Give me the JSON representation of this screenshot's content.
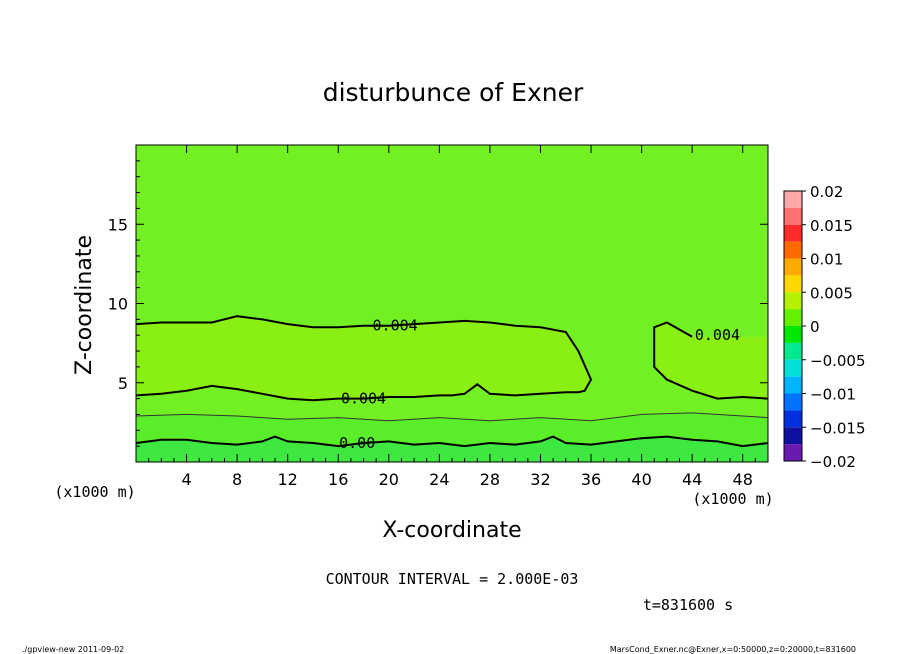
{
  "chart_data": {
    "type": "heatmap",
    "title": "disturbunce of Exner",
    "xlabel": "X-coordinate",
    "ylabel": "Z-coordinate",
    "x_unit_left": "(x1000 m)",
    "x_unit_right": "(x1000 m)",
    "xlim": [
      0,
      50
    ],
    "ylim": [
      0,
      20
    ],
    "x_ticks": [
      4,
      8,
      12,
      16,
      20,
      24,
      28,
      32,
      36,
      40,
      44,
      48
    ],
    "x_tick_labels": [
      "4",
      "8",
      "12",
      "16",
      "20",
      "24",
      "28",
      "32",
      "36",
      "40",
      "44",
      "48"
    ],
    "y_ticks": [
      5,
      10,
      15
    ],
    "y_tick_labels": [
      "5",
      "10",
      "15"
    ],
    "colorbar": {
      "levels": [
        0.02,
        0.0175,
        0.015,
        0.0125,
        0.01,
        0.0075,
        0.005,
        0.0025,
        0,
        -0.0025,
        -0.005,
        -0.0075,
        -0.01,
        -0.0125,
        -0.015,
        -0.0175,
        -0.02
      ],
      "labels": [
        "0.02",
        "0.015",
        "0.01",
        "0.005",
        "0",
        "−0.005",
        "−0.01",
        "−0.015",
        "−0.02"
      ],
      "label_values": [
        0.02,
        0.015,
        0.01,
        0.005,
        0,
        -0.005,
        -0.01,
        -0.015,
        -0.02
      ],
      "colors": [
        "#ffaaaa",
        "#ff7070",
        "#ff2a2a",
        "#ff6a00",
        "#ffaa00",
        "#ffd700",
        "#b4f000",
        "#64f000",
        "#00e800",
        "#00e890",
        "#00e0d8",
        "#00b4ff",
        "#0074ff",
        "#0030e0",
        "#1010a0",
        "#6a1ab0"
      ]
    },
    "fill_colors": {
      "upper": "#72f023",
      "middle": "#8af014",
      "band_low": "#5aee2a",
      "band_bottom": "#3ee840"
    },
    "contours": [
      {
        "level": 0.004,
        "label": "0.004",
        "upper_x": [
          0,
          2,
          6,
          8,
          10,
          12,
          14,
          16,
          18,
          20,
          22,
          24,
          26,
          28,
          30,
          32,
          34,
          35,
          36,
          35.5,
          35,
          34,
          32,
          30,
          28,
          27,
          26,
          25,
          24,
          22,
          20,
          18,
          16,
          14,
          12,
          10,
          8,
          6,
          4,
          2,
          0
        ],
        "upper_y": [
          8.7,
          8.8,
          8.8,
          9.2,
          9.0,
          8.7,
          8.5,
          8.5,
          8.6,
          8.6,
          8.7,
          8.8,
          8.9,
          8.8,
          8.6,
          8.5,
          8.2,
          7.0,
          5.2,
          4.5,
          4.4,
          4.4,
          4.3,
          4.2,
          4.3,
          4.9,
          4.3,
          4.2,
          4.2,
          4.1,
          4.1,
          4.0,
          4.0,
          3.9,
          4.0,
          4.3,
          4.6,
          4.8,
          4.5,
          4.3,
          4.2
        ],
        "right_x": [
          50,
          48,
          46,
          44,
          42,
          41,
          41,
          42,
          44
        ],
        "right_y": [
          4.0,
          4.1,
          4.0,
          4.5,
          5.2,
          6.0,
          8.5,
          8.8,
          7.9
        ]
      },
      {
        "level": 0.002,
        "label": "",
        "x": [
          0,
          4,
          8,
          12,
          16,
          20,
          24,
          28,
          32,
          36,
          40,
          44,
          48,
          50
        ],
        "y": [
          2.9,
          3.0,
          2.9,
          2.7,
          2.8,
          2.6,
          2.8,
          2.6,
          2.8,
          2.6,
          3.0,
          3.1,
          2.9,
          2.8
        ]
      },
      {
        "level": 0.0,
        "label": "0.00",
        "x": [
          0,
          2,
          4,
          6,
          8,
          10,
          11,
          12,
          14,
          16,
          18,
          20,
          22,
          24,
          26,
          28,
          30,
          32,
          33,
          34,
          36,
          38,
          40,
          42,
          44,
          46,
          48,
          50
        ],
        "y": [
          1.2,
          1.4,
          1.4,
          1.2,
          1.1,
          1.3,
          1.6,
          1.3,
          1.2,
          1.0,
          1.2,
          1.3,
          1.1,
          1.2,
          1.0,
          1.2,
          1.1,
          1.3,
          1.6,
          1.2,
          1.1,
          1.3,
          1.5,
          1.6,
          1.4,
          1.3,
          1.0,
          1.2
        ]
      }
    ],
    "contour_interval_text": "CONTOUR INTERVAL = 2.000E-03",
    "time_text": "t=831600 s"
  },
  "footer": {
    "left": "./gpview-new   2011-09-02",
    "right": "MarsCond_Exner.nc@Exner,x=0:50000,z=0:20000,t=831600"
  }
}
